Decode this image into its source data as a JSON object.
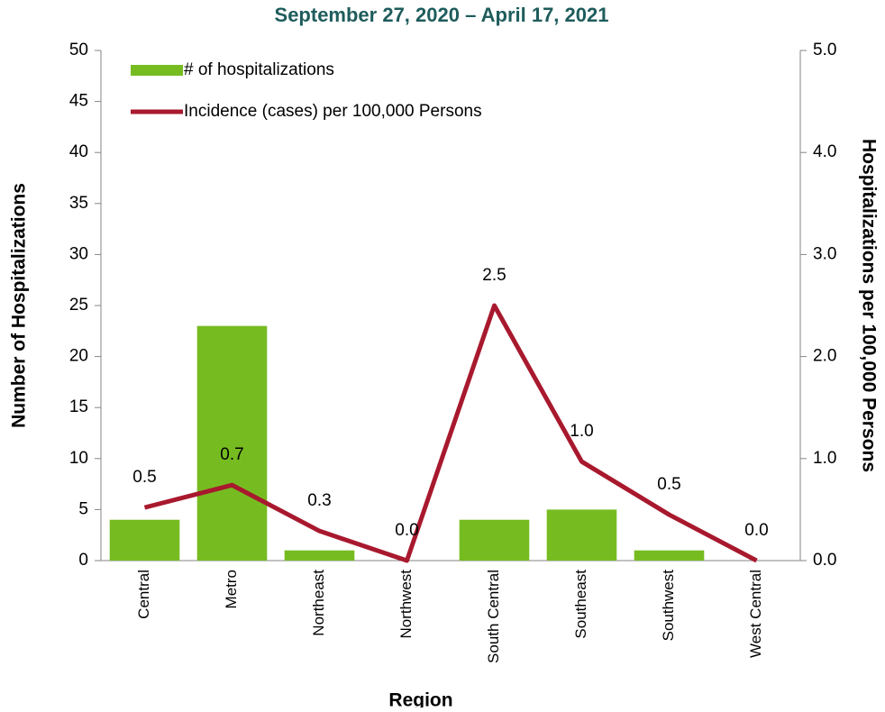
{
  "chart_data": {
    "type": "bar_line",
    "title": "September 27, 2020 – April 17, 2021",
    "x_label": "Region",
    "y_label": "Number of Hospitalizations",
    "y2_label": "Hospitalizations per 100,000 Persons",
    "categories": [
      "Central",
      "Metro",
      "Northeast",
      "Northwest",
      "South Central",
      "Southeast",
      "Southwest",
      "West Central"
    ],
    "series": [
      {
        "name": "# of hospitalizations",
        "type": "bar",
        "color": "#76bc21",
        "values": [
          4,
          23,
          1,
          0,
          4,
          5,
          1,
          0
        ]
      },
      {
        "name": "Incidence (cases) per 100,000 Persons",
        "type": "line",
        "axis": "y2",
        "color": "#a8192e",
        "values": [
          0.52,
          0.74,
          0.29,
          0,
          2.5,
          0.97,
          0.45,
          0
        ],
        "value_labels": [
          "0.5",
          "0.7",
          "0.3",
          "0.0",
          "2.5",
          "1.0",
          "0.5",
          "0.0"
        ]
      }
    ],
    "ylim": [
      0,
      50
    ],
    "yticks": [
      0,
      5,
      10,
      15,
      20,
      25,
      30,
      35,
      40,
      45,
      50
    ],
    "y2lim": [
      0,
      5
    ],
    "y2ticks": [
      {
        "value": 0,
        "label": "0.0"
      },
      {
        "value": 1,
        "label": "1.0"
      },
      {
        "value": 2,
        "label": "2.0"
      },
      {
        "value": 3,
        "label": "3.0"
      },
      {
        "value": 4,
        "label": "4.0"
      },
      {
        "value": 5,
        "label": "5.0"
      }
    ],
    "grid": false,
    "legend": "upper left"
  }
}
